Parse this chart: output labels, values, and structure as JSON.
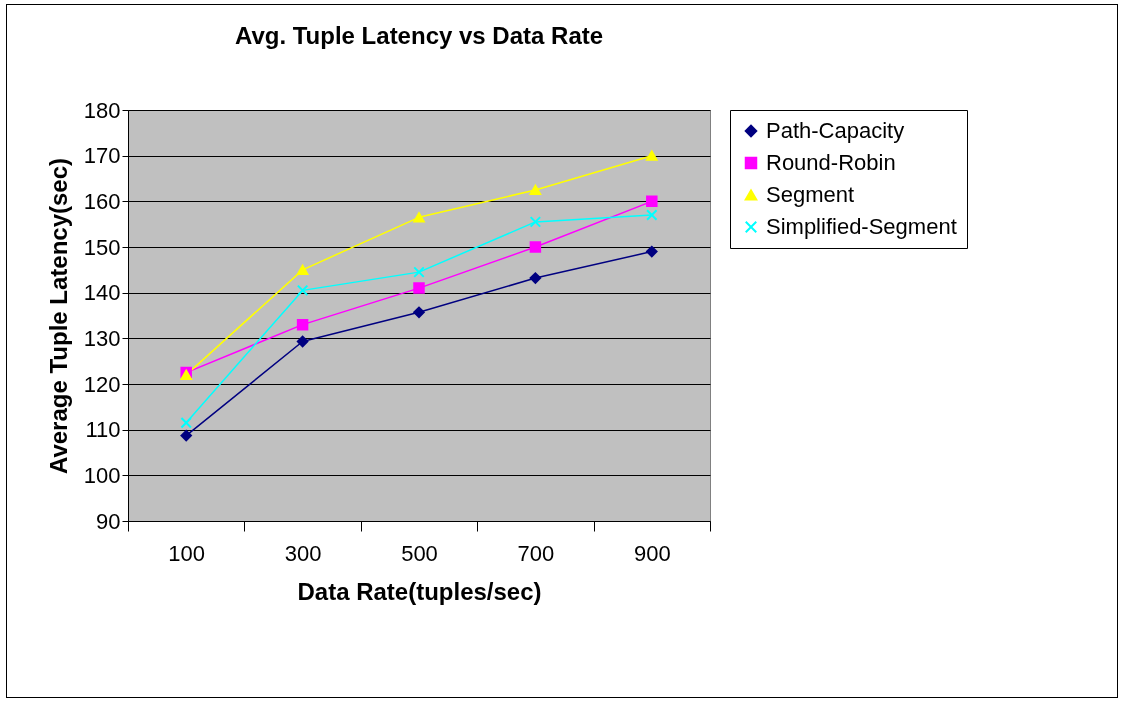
{
  "chart_data": {
    "type": "line",
    "title": "Avg. Tuple Latency vs Data Rate",
    "xlabel": "Data Rate(tuples/sec)",
    "ylabel": "Average Tuple Latency(sec)",
    "categories": [
      "100",
      "300",
      "500",
      "700",
      "900"
    ],
    "series": [
      {
        "name": "Path-Capacity",
        "color": "#000080",
        "marker": "diamond",
        "values": [
          108.7,
          129.3,
          135.7,
          143.2,
          149
        ]
      },
      {
        "name": "Round-Robin",
        "color": "#ff00ff",
        "marker": "square",
        "values": [
          122.5,
          133,
          141,
          150,
          160
        ]
      },
      {
        "name": "Segment",
        "color": "#ffff00",
        "marker": "triangle",
        "values": [
          122,
          145,
          156.5,
          162.5,
          170
        ]
      },
      {
        "name": "Simplified-Segment",
        "color": "#00ffff",
        "marker": "cross",
        "values": [
          111.5,
          140.5,
          144.5,
          155.5,
          157
        ]
      }
    ],
    "ylim": [
      90,
      180
    ],
    "yticks": [
      90,
      100,
      110,
      120,
      130,
      140,
      150,
      160,
      170,
      180
    ],
    "grid": "y",
    "legend": "right",
    "line_style": "solid"
  }
}
